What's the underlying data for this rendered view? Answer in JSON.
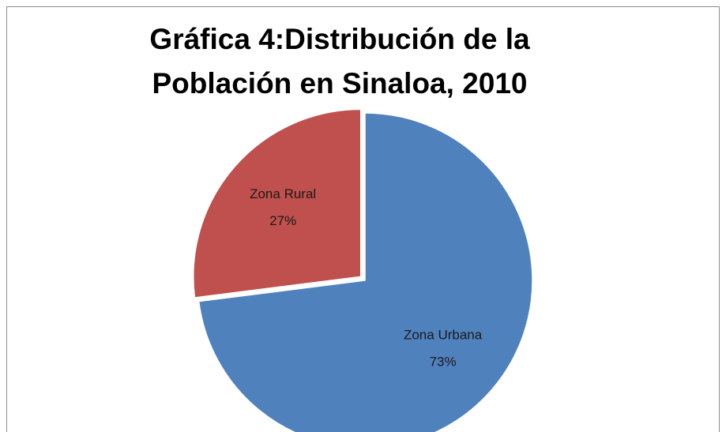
{
  "chart_data": {
    "type": "pie",
    "title": "Gráfica 4:Distribución de la Población en Sinaloa, 2010",
    "categories": [
      "Zona Urbana",
      "Zona Rural"
    ],
    "values": [
      73,
      27
    ],
    "value_labels": [
      "73%",
      "27%"
    ],
    "colors": [
      "#4f81bd",
      "#c0504d"
    ]
  }
}
